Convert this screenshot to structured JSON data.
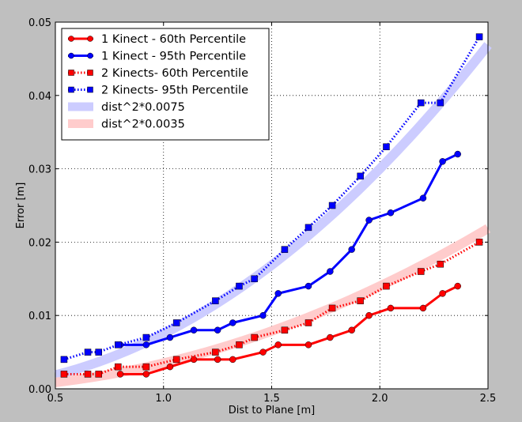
{
  "chart_data": {
    "type": "line",
    "title": "",
    "xlabel": "Dist to Plane [m]",
    "ylabel": "Error [m]",
    "xlim": [
      0.5,
      2.5
    ],
    "ylim": [
      0,
      0.05
    ],
    "xticks": [
      "0.5",
      "1.0",
      "1.5",
      "2.0",
      "2.5"
    ],
    "yticks": [
      "0.00",
      "0.01",
      "0.02",
      "0.03",
      "0.04",
      "0.05"
    ],
    "grid": true,
    "legend_position": "top-left",
    "series": [
      {
        "name": "1 Kinect - 60th Percentile",
        "color": "#ff0000",
        "style": "solid",
        "marker": "circle",
        "x": [
          0.8,
          0.92,
          1.03,
          1.14,
          1.25,
          1.32,
          1.46,
          1.53,
          1.67,
          1.77,
          1.87,
          1.95,
          2.05,
          2.2,
          2.29,
          2.36
        ],
        "y": [
          0.002,
          0.002,
          0.003,
          0.004,
          0.004,
          0.004,
          0.005,
          0.006,
          0.006,
          0.007,
          0.008,
          0.01,
          0.011,
          0.011,
          0.013,
          0.014
        ]
      },
      {
        "name": "1 Kinect - 95th Percentile",
        "color": "#0000ff",
        "style": "solid",
        "marker": "circle",
        "x": [
          0.8,
          0.92,
          1.03,
          1.14,
          1.25,
          1.32,
          1.46,
          1.53,
          1.67,
          1.77,
          1.87,
          1.95,
          2.05,
          2.2,
          2.29,
          2.36
        ],
        "y": [
          0.006,
          0.006,
          0.007,
          0.008,
          0.008,
          0.009,
          0.01,
          0.013,
          0.014,
          0.016,
          0.019,
          0.023,
          0.024,
          0.026,
          0.031,
          0.032
        ]
      },
      {
        "name": "2 Kinects- 60th Percentile",
        "color": "#ff0000",
        "style": "dotted",
        "marker": "square",
        "x": [
          0.54,
          0.65,
          0.7,
          0.79,
          0.92,
          1.06,
          1.24,
          1.35,
          1.42,
          1.56,
          1.67,
          1.78,
          1.91,
          2.03,
          2.19,
          2.28,
          2.46
        ],
        "y": [
          0.002,
          0.002,
          0.002,
          0.003,
          0.003,
          0.004,
          0.005,
          0.006,
          0.007,
          0.008,
          0.009,
          0.011,
          0.012,
          0.014,
          0.016,
          0.017,
          0.02
        ]
      },
      {
        "name": "2 Kinects- 95th Percentile",
        "color": "#0000ff",
        "style": "dotted",
        "marker": "square",
        "x": [
          0.54,
          0.65,
          0.7,
          0.79,
          0.92,
          1.06,
          1.24,
          1.35,
          1.42,
          1.56,
          1.67,
          1.78,
          1.91,
          2.03,
          2.19,
          2.28,
          2.46
        ],
        "y": [
          0.004,
          0.005,
          0.005,
          0.006,
          0.007,
          0.009,
          0.012,
          0.014,
          0.015,
          0.019,
          0.022,
          0.025,
          0.029,
          0.033,
          0.039,
          0.039,
          0.048
        ]
      },
      {
        "name": "dist^2*0.0075",
        "color": "#ccccff",
        "style": "band",
        "coef": 0.0075
      },
      {
        "name": "dist^2*0.0035",
        "color": "#ffcccc",
        "style": "band",
        "coef": 0.0035
      }
    ]
  }
}
